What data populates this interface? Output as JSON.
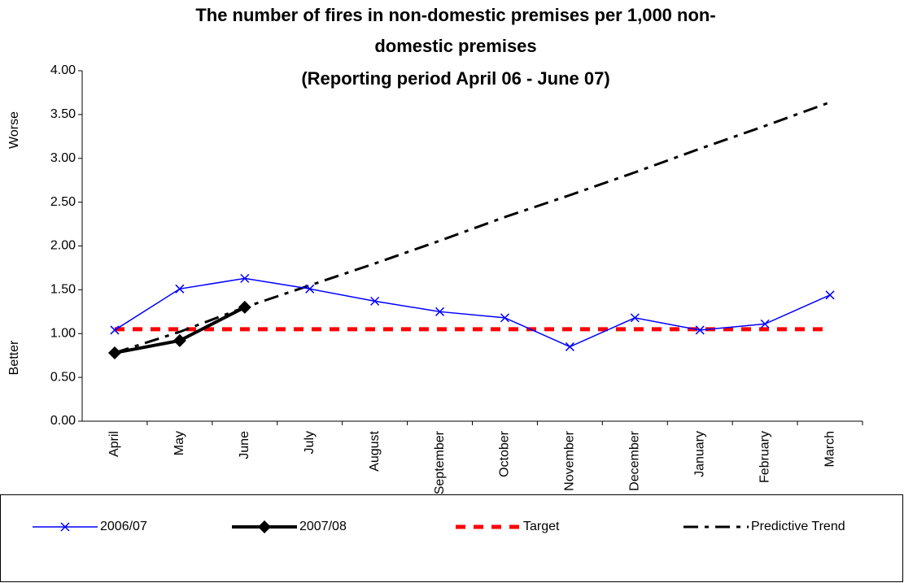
{
  "chart_data": {
    "type": "line",
    "title": [
      "The number of fires in non-domestic premises per 1,000 non-",
      "domestic premises"
    ],
    "subtitle": "(Reporting period  April 06 - June 07)",
    "side_labels": {
      "top": "Worse",
      "bottom": "Better"
    },
    "categories": [
      "April",
      "May",
      "June",
      "July",
      "August",
      "September",
      "October",
      "November",
      "December",
      "January",
      "February",
      "March"
    ],
    "series": [
      {
        "name": "2006/07",
        "color": "#0000ff",
        "style": "thin-x",
        "values": [
          1.04,
          1.51,
          1.63,
          1.51,
          1.37,
          1.25,
          1.18,
          0.85,
          1.18,
          1.04,
          1.11,
          1.44
        ]
      },
      {
        "name": "2007/08",
        "color": "#000000",
        "style": "thick-diamond",
        "values": [
          0.78,
          0.92,
          1.3,
          null,
          null,
          null,
          null,
          null,
          null,
          null,
          null,
          null
        ]
      },
      {
        "name": "Target",
        "color": "#ff0000",
        "style": "dashed",
        "values": [
          1.05,
          1.05,
          1.05,
          1.05,
          1.05,
          1.05,
          1.05,
          1.05,
          1.05,
          1.05,
          1.05,
          1.05
        ]
      },
      {
        "name": "Predictive Trend",
        "color": "#000000",
        "style": "dash-dot",
        "values": [
          0.78,
          1.02,
          1.3,
          1.55,
          1.8,
          2.06,
          2.33,
          2.58,
          2.84,
          3.11,
          3.37,
          3.64
        ]
      }
    ],
    "ylim": [
      0,
      4
    ],
    "yticks": [
      {
        "value": 0,
        "label": "0.00"
      },
      {
        "value": 0.5,
        "label": "0.50"
      },
      {
        "value": 1,
        "label": "1.00"
      },
      {
        "value": 1.5,
        "label": "1.50"
      },
      {
        "value": 2,
        "label": "2.00"
      },
      {
        "value": 2.5,
        "label": "2.50"
      },
      {
        "value": 3,
        "label": "3.00"
      },
      {
        "value": 3.5,
        "label": "3.50"
      },
      {
        "value": 4,
        "label": "4.00"
      }
    ],
    "legend": "bottom",
    "grid": false
  }
}
